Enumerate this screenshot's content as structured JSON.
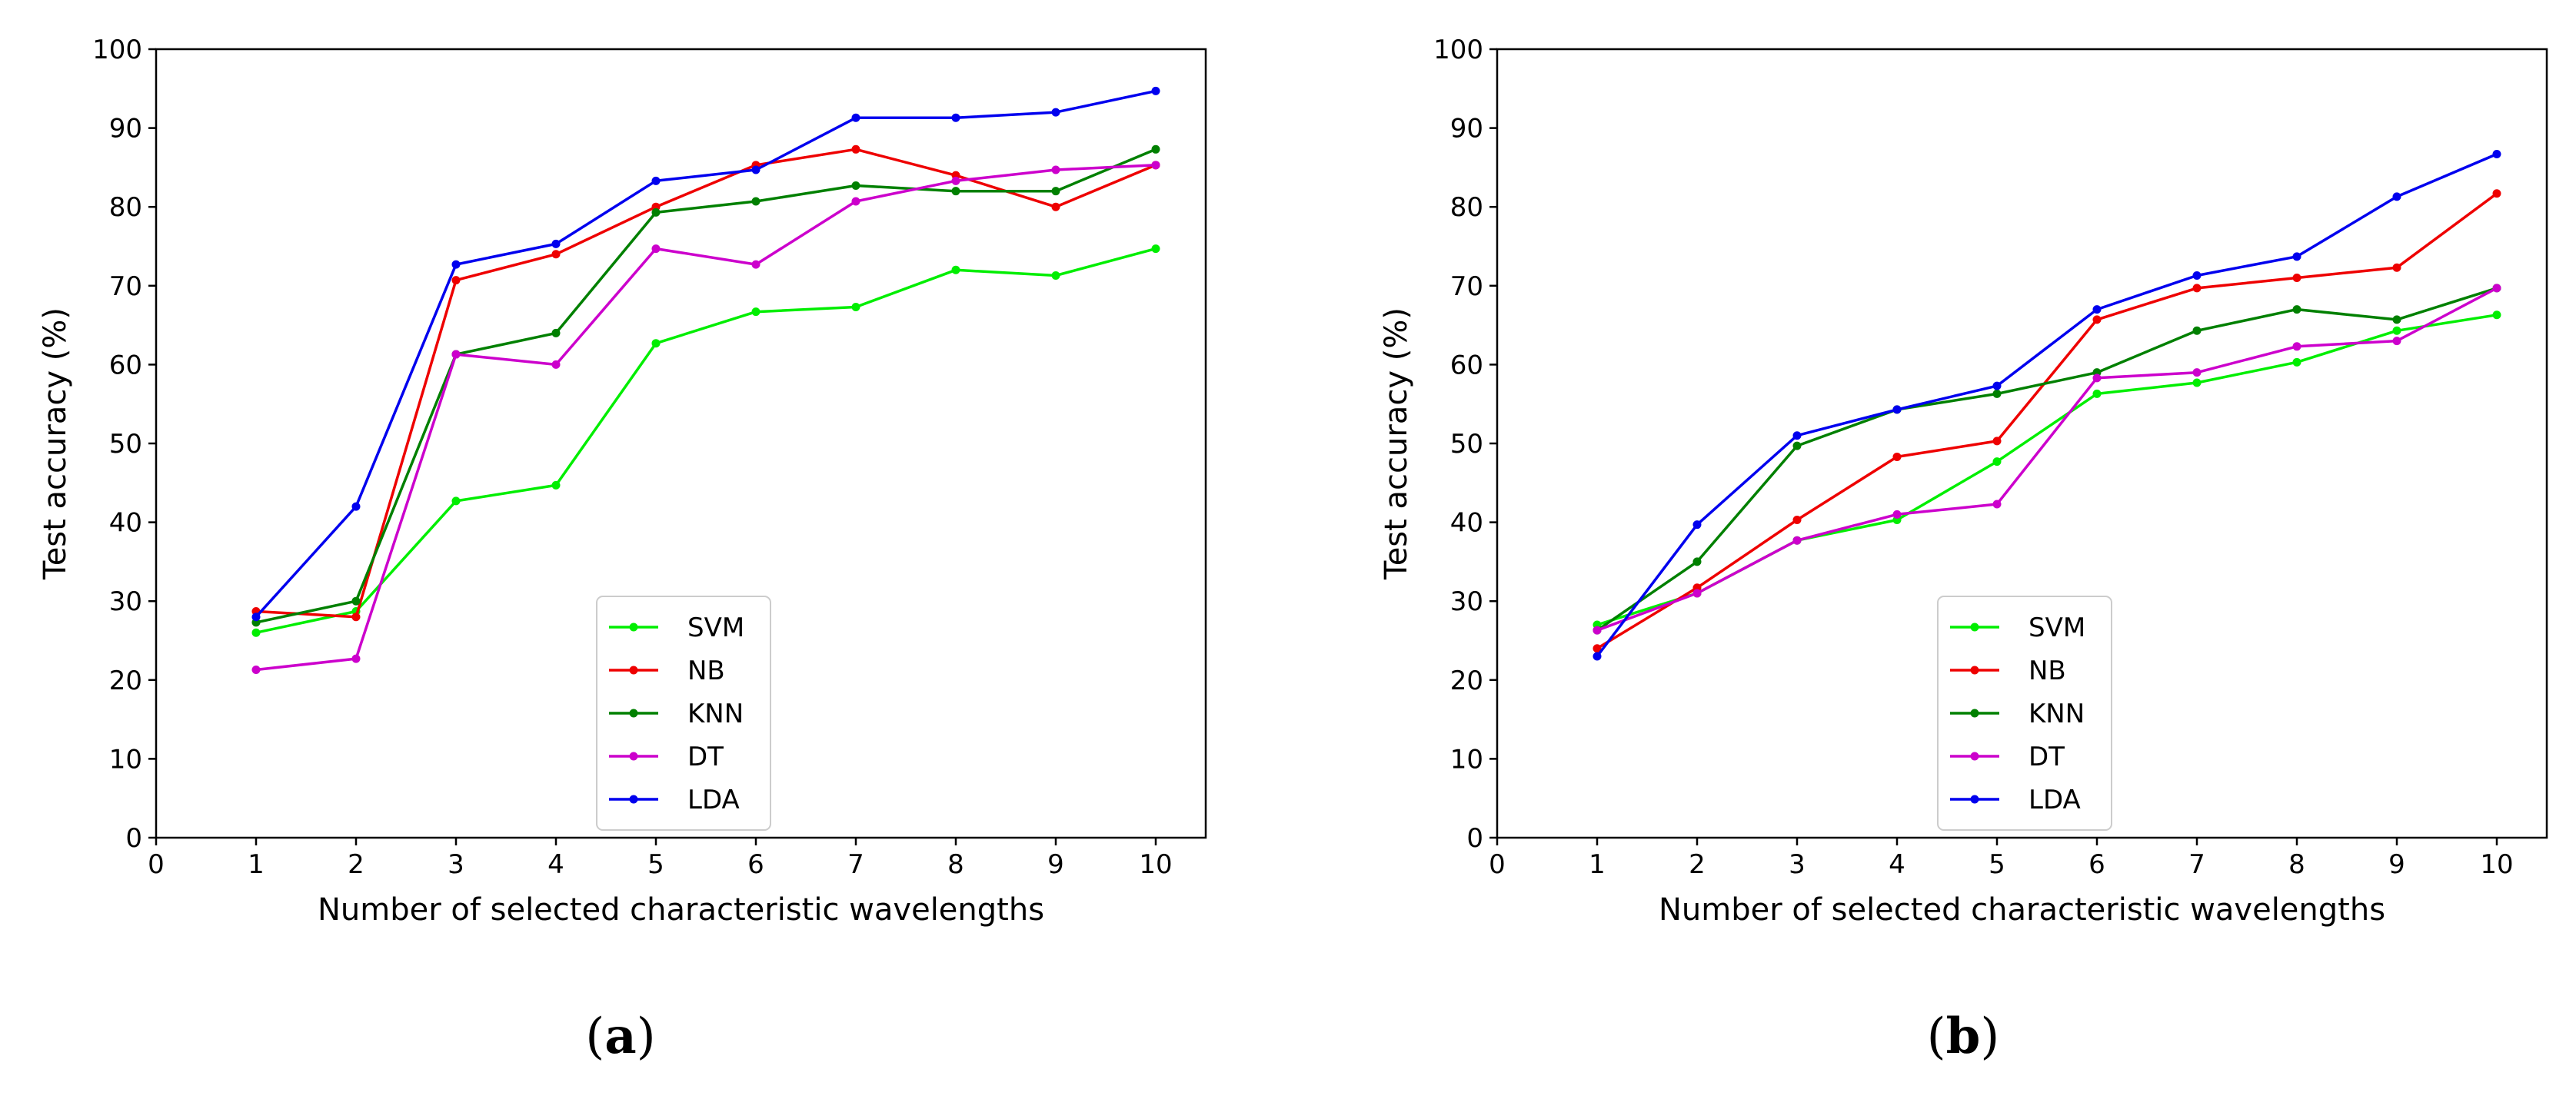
{
  "chart_data": [
    {
      "type": "line",
      "panel_label": "(a)",
      "panel_letter": "a",
      "title": "",
      "xlabel": "Number of selected characteristic wavelengths",
      "ylabel": "Test accuracy (%)",
      "xlim": [
        0,
        10.5
      ],
      "ylim": [
        0,
        100
      ],
      "xticks": [
        0,
        1,
        2,
        3,
        4,
        5,
        6,
        7,
        8,
        9,
        10
      ],
      "yticks": [
        0,
        10,
        20,
        30,
        40,
        50,
        60,
        70,
        80,
        90,
        100
      ],
      "grid": false,
      "legend_location": "lower-center",
      "x": [
        1,
        2,
        3,
        4,
        5,
        6,
        7,
        8,
        9,
        10
      ],
      "series": [
        {
          "name": "SVM",
          "color": "#00ee00",
          "values": [
            26.0,
            28.7,
            42.7,
            44.7,
            62.7,
            66.7,
            67.3,
            72.0,
            71.3,
            74.7
          ]
        },
        {
          "name": "NB",
          "color": "#ee0000",
          "values": [
            28.7,
            28.0,
            70.7,
            74.0,
            80.0,
            85.3,
            87.3,
            84.0,
            80.0,
            85.3
          ]
        },
        {
          "name": "KNN",
          "color": "#008000",
          "values": [
            27.3,
            30.0,
            61.3,
            64.0,
            79.3,
            80.7,
            82.7,
            82.0,
            82.0,
            87.3
          ]
        },
        {
          "name": "DT",
          "color": "#cc00cc",
          "values": [
            21.3,
            22.7,
            61.3,
            60.0,
            74.7,
            72.7,
            80.7,
            83.3,
            84.7,
            85.3
          ]
        },
        {
          "name": "LDA",
          "color": "#0000ee",
          "values": [
            28.0,
            42.0,
            72.7,
            75.3,
            83.3,
            84.7,
            91.3,
            91.3,
            92.0,
            94.7
          ]
        }
      ]
    },
    {
      "type": "line",
      "panel_label": "(b)",
      "panel_letter": "b",
      "title": "",
      "xlabel": "Number of selected characteristic wavelengths",
      "ylabel": "Test accuracy (%)",
      "xlim": [
        0,
        10.5
      ],
      "ylim": [
        0,
        100
      ],
      "xticks": [
        0,
        1,
        2,
        3,
        4,
        5,
        6,
        7,
        8,
        9,
        10
      ],
      "yticks": [
        0,
        10,
        20,
        30,
        40,
        50,
        60,
        70,
        80,
        90,
        100
      ],
      "grid": false,
      "legend_location": "lower-center",
      "x": [
        1,
        2,
        3,
        4,
        5,
        6,
        7,
        8,
        9,
        10
      ],
      "series": [
        {
          "name": "SVM",
          "color": "#00ee00",
          "values": [
            27.0,
            31.0,
            37.7,
            40.3,
            47.7,
            56.3,
            57.7,
            60.3,
            64.3,
            66.3
          ]
        },
        {
          "name": "NB",
          "color": "#ee0000",
          "values": [
            24.0,
            31.7,
            40.3,
            48.3,
            50.3,
            65.7,
            69.7,
            71.0,
            72.3,
            81.7
          ]
        },
        {
          "name": "KNN",
          "color": "#008000",
          "values": [
            26.3,
            35.0,
            49.7,
            54.3,
            56.3,
            59.0,
            64.3,
            67.0,
            65.7,
            69.7
          ]
        },
        {
          "name": "DT",
          "color": "#cc00cc",
          "values": [
            26.3,
            31.0,
            37.7,
            41.0,
            42.3,
            58.3,
            59.0,
            62.3,
            63.0,
            69.7
          ]
        },
        {
          "name": "LDA",
          "color": "#0000ee",
          "values": [
            23.0,
            39.7,
            51.0,
            54.3,
            57.3,
            67.0,
            71.3,
            73.7,
            81.3,
            86.7
          ]
        }
      ]
    }
  ]
}
